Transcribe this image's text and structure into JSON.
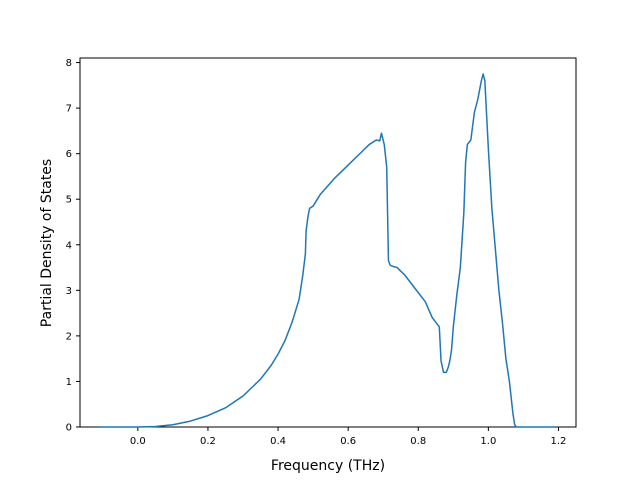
{
  "chart_data": {
    "type": "line",
    "title": "",
    "xlabel": "Frequency (THz)",
    "ylabel": "Partial Density of States",
    "xlim": [
      -0.165,
      1.25
    ],
    "ylim": [
      0,
      8.1
    ],
    "xticks": [
      0.0,
      0.2,
      0.4,
      0.6,
      0.8,
      1.0,
      1.2
    ],
    "xtick_labels": [
      "0.0",
      "0.2",
      "0.4",
      "0.6",
      "0.8",
      "1.0",
      "1.2"
    ],
    "yticks": [
      0,
      1,
      2,
      3,
      4,
      5,
      6,
      7,
      8
    ],
    "ytick_labels": [
      "0",
      "1",
      "2",
      "3",
      "4",
      "5",
      "6",
      "7",
      "8"
    ],
    "grid": false,
    "legend": "none",
    "line_color": "#1f77b4",
    "series": [
      {
        "x": [
          -0.11,
          0.0,
          0.05,
          0.1,
          0.15,
          0.2,
          0.25,
          0.3,
          0.35,
          0.38,
          0.4,
          0.42,
          0.44,
          0.46,
          0.47,
          0.478,
          0.48,
          0.485,
          0.49,
          0.5,
          0.52,
          0.56,
          0.6,
          0.64,
          0.66,
          0.68,
          0.69,
          0.695,
          0.703,
          0.71,
          0.715,
          0.72,
          0.73,
          0.74,
          0.75,
          0.76,
          0.78,
          0.8,
          0.82,
          0.84,
          0.86,
          0.865,
          0.872,
          0.88,
          0.885,
          0.89,
          0.895,
          0.9,
          0.91,
          0.92,
          0.93,
          0.935,
          0.94,
          0.95,
          0.96,
          0.97,
          0.98,
          0.985,
          0.99,
          1.0,
          1.01,
          1.02,
          1.03,
          1.04,
          1.05,
          1.06,
          1.07,
          1.075,
          1.08,
          1.1,
          1.19
        ],
        "y": [
          0.0,
          0.0,
          0.01,
          0.05,
          0.13,
          0.25,
          0.42,
          0.68,
          1.05,
          1.35,
          1.6,
          1.9,
          2.3,
          2.8,
          3.3,
          3.8,
          4.3,
          4.6,
          4.8,
          4.85,
          5.1,
          5.45,
          5.75,
          6.05,
          6.2,
          6.3,
          6.28,
          6.45,
          6.2,
          5.7,
          3.65,
          3.55,
          3.52,
          3.5,
          3.42,
          3.35,
          3.15,
          2.95,
          2.75,
          2.4,
          2.2,
          1.45,
          1.2,
          1.2,
          1.3,
          1.45,
          1.7,
          2.2,
          2.9,
          3.5,
          4.7,
          5.8,
          6.2,
          6.3,
          6.9,
          7.2,
          7.6,
          7.75,
          7.6,
          6.1,
          4.8,
          3.9,
          3.0,
          2.3,
          1.5,
          1.0,
          0.3,
          0.05,
          0.0,
          0.0,
          0.0
        ]
      }
    ]
  }
}
